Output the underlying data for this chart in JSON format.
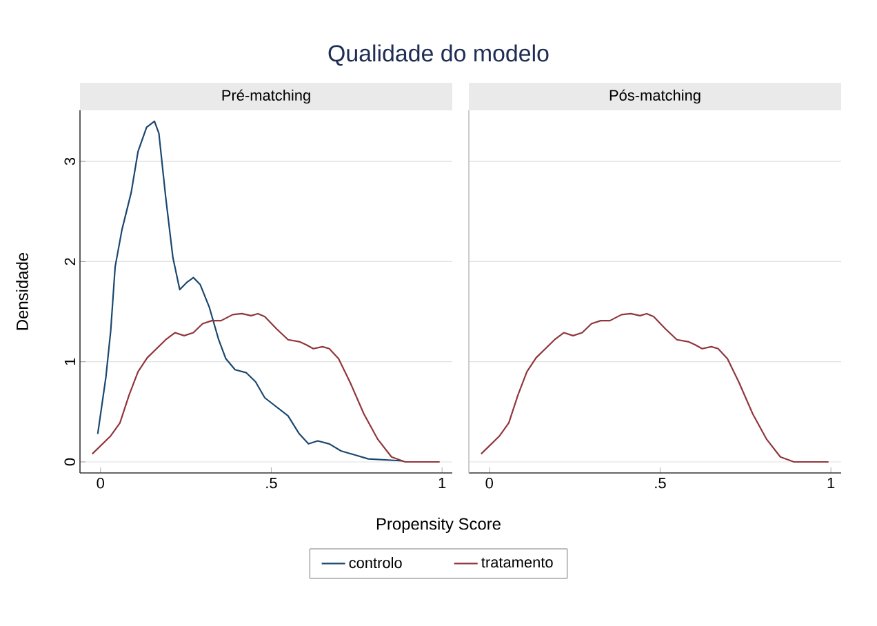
{
  "chart_data": [
    {
      "type": "line",
      "title": "Qualidade do modelo",
      "subtitle": "Pré-matching",
      "xlabel": "Propensity Score",
      "ylabel": "Densidade",
      "xlim": [
        -0.06,
        1.03
      ],
      "ylim": [
        -0.11,
        3.51
      ],
      "xticks": [
        0,
        {
          "value": 0.5,
          "label": ".5"
        },
        1
      ],
      "yticks": [
        0,
        1,
        2,
        3
      ],
      "grid": "y",
      "legend": "bottom",
      "series": [
        {
          "name": "controlo",
          "color": "#1a476f",
          "x": [
            -0.008,
            0.016,
            0.03,
            0.043,
            0.063,
            0.09,
            0.11,
            0.135,
            0.158,
            0.171,
            0.191,
            0.212,
            0.232,
            0.252,
            0.272,
            0.292,
            0.319,
            0.346,
            0.367,
            0.394,
            0.427,
            0.454,
            0.481,
            0.515,
            0.549,
            0.582,
            0.609,
            0.636,
            0.67,
            0.704,
            0.744,
            0.784,
            0.885
          ],
          "values": [
            0.28,
            0.85,
            1.31,
            1.95,
            2.32,
            2.69,
            3.1,
            3.34,
            3.4,
            3.28,
            2.64,
            2.04,
            1.72,
            1.79,
            1.84,
            1.77,
            1.54,
            1.22,
            1.03,
            0.92,
            0.89,
            0.8,
            0.64,
            0.55,
            0.46,
            0.28,
            0.18,
            0.21,
            0.18,
            0.11,
            0.07,
            0.03,
            0.01
          ]
        },
        {
          "name": "tratamento",
          "color": "#90353b",
          "x": [
            -0.024,
            0.03,
            0.057,
            0.084,
            0.11,
            0.137,
            0.164,
            0.191,
            0.218,
            0.245,
            0.272,
            0.299,
            0.326,
            0.353,
            0.387,
            0.414,
            0.441,
            0.461,
            0.481,
            0.515,
            0.549,
            0.582,
            0.602,
            0.623,
            0.65,
            0.67,
            0.697,
            0.73,
            0.771,
            0.811,
            0.852,
            0.892,
            0.993
          ],
          "values": [
            0.08,
            0.26,
            0.39,
            0.67,
            0.9,
            1.04,
            1.13,
            1.22,
            1.29,
            1.26,
            1.29,
            1.38,
            1.41,
            1.41,
            1.47,
            1.48,
            1.46,
            1.48,
            1.45,
            1.33,
            1.22,
            1.2,
            1.17,
            1.13,
            1.15,
            1.13,
            1.03,
            0.8,
            0.48,
            0.23,
            0.05,
            0.0,
            0.0
          ]
        }
      ]
    },
    {
      "type": "line",
      "subtitle": "Pós-matching",
      "xlim": [
        -0.06,
        1.03
      ],
      "ylim": [
        -0.11,
        3.51
      ],
      "xticks": [
        0,
        {
          "value": 0.5,
          "label": ".5"
        },
        1
      ],
      "yticks": [
        0,
        1,
        2,
        3
      ],
      "grid": "y",
      "tick_labels": "x",
      "series": [
        {
          "color": "#90353b",
          "x": [
            -0.024,
            0.03,
            0.057,
            0.084,
            0.11,
            0.137,
            0.164,
            0.191,
            0.218,
            0.245,
            0.272,
            0.299,
            0.326,
            0.353,
            0.387,
            0.414,
            0.441,
            0.461,
            0.481,
            0.515,
            0.549,
            0.582,
            0.602,
            0.623,
            0.65,
            0.67,
            0.697,
            0.73,
            0.771,
            0.811,
            0.852,
            0.892,
            0.993
          ],
          "values": [
            0.08,
            0.26,
            0.39,
            0.67,
            0.9,
            1.04,
            1.13,
            1.22,
            1.29,
            1.26,
            1.29,
            1.38,
            1.41,
            1.41,
            1.47,
            1.48,
            1.46,
            1.48,
            1.45,
            1.33,
            1.22,
            1.2,
            1.17,
            1.13,
            1.15,
            1.13,
            1.03,
            0.8,
            0.48,
            0.23,
            0.05,
            0.0,
            0.0
          ]
        }
      ]
    }
  ]
}
